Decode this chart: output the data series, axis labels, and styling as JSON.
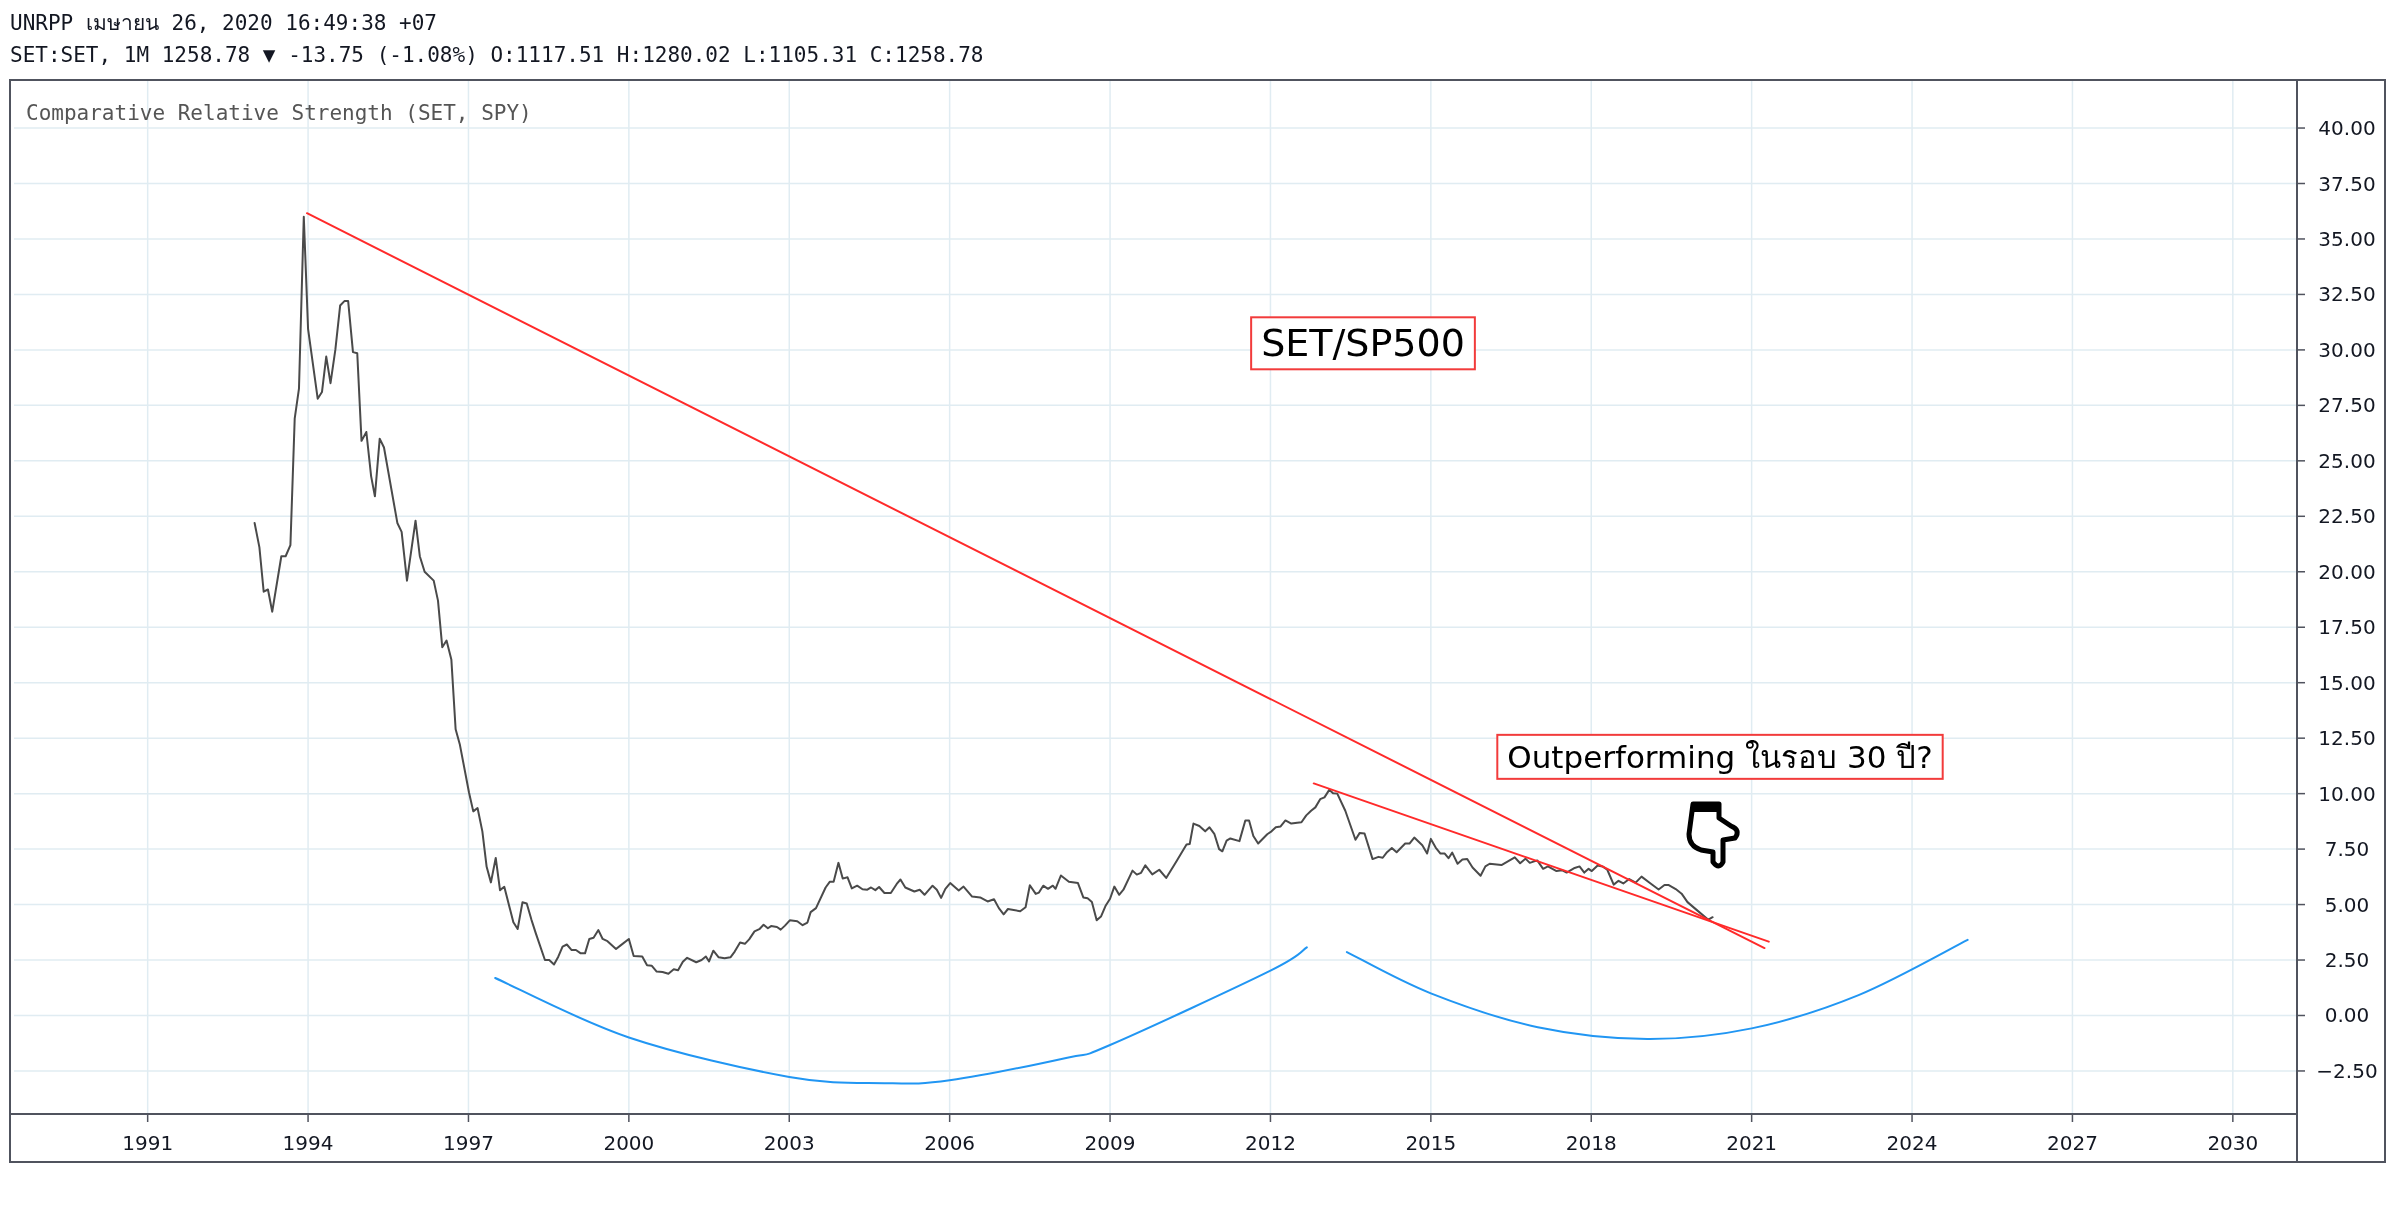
{
  "chart_data": {
    "type": "line",
    "title": "Comparative Relative Strength (SET, SPY)",
    "annotations": [
      "UNRPP เมษายน 26, 2020 16:49:38 +07",
      "SET:SET, 1M 1258.78 ▼ -13.75 (-1.08%) O:1117.51 H:1280.02 L:1105.31 C:1258.78",
      "SET/SP500",
      "Outperforming ในรอบ 30 ปี?"
    ],
    "xlim": [
      1988.5,
      2031.2
    ],
    "xticks": [
      1991,
      1994,
      1997,
      2000,
      2003,
      2006,
      2009,
      2012,
      2015,
      2018,
      2021,
      2024,
      2027,
      2030
    ],
    "ylim": [
      -4.44,
      42.12
    ],
    "yticks": [
      {
        "value": -2.5,
        "label": "−2.50"
      },
      {
        "value": 0,
        "label": "0.00"
      },
      {
        "value": 2.5,
        "label": "2.50"
      },
      {
        "value": 5,
        "label": "5.00"
      },
      {
        "value": 7.5,
        "label": "7.50"
      },
      {
        "value": 10,
        "label": "10.00"
      },
      {
        "value": 12.5,
        "label": "12.50"
      },
      {
        "value": 15,
        "label": "15.00"
      },
      {
        "value": 17.5,
        "label": "17.50"
      },
      {
        "value": 20,
        "label": "20.00"
      },
      {
        "value": 22.5,
        "label": "22.50"
      },
      {
        "value": 25,
        "label": "25.00"
      },
      {
        "value": 27.5,
        "label": "27.50"
      },
      {
        "value": 30,
        "label": "30.00"
      },
      {
        "value": 32.5,
        "label": "32.50"
      },
      {
        "value": 35,
        "label": "35.00"
      },
      {
        "value": 37.5,
        "label": "37.50"
      },
      {
        "value": 40,
        "label": "40.00"
      }
    ],
    "grid": true,
    "series": [
      {
        "color": "#4a4a4a",
        "x": [
          1993.0,
          1993.09,
          1993.17,
          1993.25,
          1993.33,
          1993.5,
          1993.58,
          1993.67,
          1993.75,
          1993.83,
          1993.92,
          1994.0,
          1994.18,
          1994.26,
          1994.34,
          1994.42,
          1994.51,
          1994.6,
          1994.68,
          1994.75,
          1994.84,
          1994.92,
          1995.0,
          1995.09,
          1995.18,
          1995.25,
          1995.34,
          1995.42,
          1995.67,
          1995.75,
          1995.85,
          1996.01,
          1996.09,
          1996.18,
          1996.35,
          1996.43,
          1996.51,
          1996.59,
          1996.68,
          1996.76,
          1996.84,
          1997.01,
          1997.09,
          1997.17,
          1997.26,
          1997.34,
          1997.42,
          1997.51,
          1997.59,
          1997.67,
          1997.84,
          1997.92,
          1998.01,
          1998.09,
          1998.18,
          1998.26,
          1998.43,
          1998.51,
          1998.6,
          1998.68,
          1998.76,
          1998.84,
          1998.93,
          1999.01,
          1999.1,
          1999.18,
          1999.26,
          1999.34,
          1999.43,
          1999.51,
          1999.6,
          1999.76,
          1999.84,
          2000.0,
          2000.09,
          2000.25,
          2000.34,
          2000.43,
          2000.52,
          2000.63,
          2000.74,
          2000.84,
          2000.92,
          2001.01,
          2001.09,
          2001.26,
          2001.36,
          2001.44,
          2001.5,
          2001.58,
          2001.68,
          2001.79,
          2001.9,
          2001.98,
          2002.08,
          2002.17,
          2002.25,
          2002.35,
          2002.44,
          2002.52,
          2002.6,
          2002.66,
          2002.77,
          2002.84,
          2002.92,
          2003.01,
          2003.15,
          2003.25,
          2003.34,
          2003.4,
          2003.5,
          2003.68,
          2003.76,
          2003.83,
          2003.92,
          2004.0,
          2004.09,
          2004.17,
          2004.27,
          2004.37,
          2004.46,
          2004.53,
          2004.61,
          2004.68,
          2004.78,
          2004.9,
          2005.01,
          2005.08,
          2005.17,
          2005.34,
          2005.44,
          2005.53,
          2005.68,
          2005.76,
          2005.84,
          2005.92,
          2006.01,
          2006.17,
          2006.26,
          2006.42,
          2006.57,
          2006.71,
          2006.83,
          2006.92,
          2007.01,
          2007.09,
          2007.32,
          2007.42,
          2007.5,
          2007.61,
          2007.67,
          2007.75,
          2007.84,
          2007.93,
          2007.98,
          2008.08,
          2008.23,
          2008.4,
          2008.5,
          2008.58,
          2008.66,
          2008.75,
          2008.83,
          2008.92,
          2009.0,
          2009.08,
          2009.17,
          2009.25,
          2009.42,
          2009.5,
          2009.58,
          2009.66,
          2009.79,
          2009.92,
          2010.05,
          2010.24,
          2010.43,
          2010.49,
          2010.56,
          2010.67,
          2010.78,
          2010.86,
          2010.95,
          2011.04,
          2011.1,
          2011.18,
          2011.25,
          2011.42,
          2011.53,
          2011.6,
          2011.68,
          2011.77,
          2011.94,
          2012.02,
          2012.1,
          2012.19,
          2012.28,
          2012.39,
          2012.5,
          2012.58,
          2012.67,
          2012.76,
          2012.84,
          2012.93,
          2013.01,
          2013.1,
          2013.17,
          2013.25,
          2013.4,
          2013.59,
          2013.67,
          2013.76,
          2013.91,
          2014.02,
          2014.1,
          2014.18,
          2014.27,
          2014.36,
          2014.52,
          2014.6,
          2014.69,
          2014.84,
          2014.93,
          2015.0,
          2015.09,
          2015.18,
          2015.26,
          2015.33,
          2015.4,
          2015.5,
          2015.59,
          2015.68,
          2015.78,
          2015.93,
          2016.02,
          2016.1,
          2016.32,
          2016.57,
          2016.67,
          2016.77,
          2016.85,
          2016.99,
          2017.1,
          2017.19,
          2017.35,
          2017.45,
          2017.54,
          2017.69,
          2017.78,
          2017.87,
          2017.95,
          2018.01,
          2018.12,
          2018.21,
          2018.3,
          2018.42,
          2018.51,
          2018.6,
          2018.71,
          2018.83,
          2018.94,
          2019.11,
          2019.26,
          2019.37,
          2019.45,
          2019.58,
          2019.69,
          2019.8,
          2019.97,
          2020.19,
          2020.27
        ],
        "values": [
          22.2,
          21.1,
          19.1,
          19.2,
          18.2,
          20.7,
          20.7,
          21.2,
          26.9,
          28.25,
          36.0,
          30.95,
          27.8,
          28.1,
          29.7,
          28.5,
          30.0,
          32.0,
          32.2,
          32.2,
          29.9,
          29.85,
          25.9,
          26.3,
          24.3,
          23.4,
          26.0,
          25.6,
          22.2,
          21.8,
          19.6,
          22.3,
          20.7,
          20.0,
          19.6,
          18.7,
          16.6,
          16.9,
          16.05,
          12.9,
          12.2,
          10.05,
          9.2,
          9.35,
          8.3,
          6.7,
          6.0,
          7.1,
          5.65,
          5.8,
          4.2,
          3.9,
          5.1,
          5.05,
          4.3,
          3.7,
          2.5,
          2.5,
          2.3,
          2.65,
          3.1,
          3.2,
          2.95,
          2.95,
          2.8,
          2.8,
          3.45,
          3.5,
          3.85,
          3.45,
          3.35,
          3.0,
          3.15,
          3.45,
          2.68,
          2.66,
          2.26,
          2.24,
          1.98,
          1.96,
          1.88,
          2.08,
          2.04,
          2.42,
          2.6,
          2.4,
          2.5,
          2.66,
          2.44,
          2.92,
          2.62,
          2.58,
          2.62,
          2.88,
          3.29,
          3.23,
          3.43,
          3.79,
          3.89,
          4.09,
          3.93,
          4.03,
          3.99,
          3.87,
          4.05,
          4.29,
          4.25,
          4.07,
          4.19,
          4.66,
          4.84,
          5.77,
          6.03,
          6.03,
          6.88,
          6.17,
          6.23,
          5.73,
          5.85,
          5.69,
          5.67,
          5.77,
          5.65,
          5.79,
          5.52,
          5.52,
          5.93,
          6.13,
          5.77,
          5.59,
          5.67,
          5.44,
          5.85,
          5.67,
          5.3,
          5.71,
          5.97,
          5.63,
          5.81,
          5.36,
          5.32,
          5.14,
          5.24,
          4.84,
          4.56,
          4.8,
          4.7,
          4.88,
          5.87,
          5.48,
          5.54,
          5.85,
          5.71,
          5.85,
          5.71,
          6.31,
          6.03,
          5.97,
          5.32,
          5.28,
          5.12,
          4.29,
          4.46,
          4.96,
          5.26,
          5.81,
          5.44,
          5.67,
          6.53,
          6.35,
          6.43,
          6.77,
          6.36,
          6.57,
          6.2,
          6.94,
          7.71,
          7.73,
          8.65,
          8.54,
          8.3,
          8.48,
          8.19,
          7.5,
          7.4,
          7.88,
          7.98,
          7.86,
          8.79,
          8.79,
          8.09,
          7.75,
          8.17,
          8.3,
          8.48,
          8.52,
          8.79,
          8.65,
          8.69,
          8.71,
          9.02,
          9.23,
          9.38,
          9.75,
          9.83,
          10.17,
          10.02,
          10.0,
          9.23,
          7.92,
          8.23,
          8.2,
          7.05,
          7.15,
          7.11,
          7.36,
          7.55,
          7.36,
          7.75,
          7.75,
          8.02,
          7.67,
          7.3,
          7.96,
          7.57,
          7.3,
          7.3,
          7.09,
          7.34,
          6.84,
          7.03,
          7.05,
          6.67,
          6.3,
          6.72,
          6.84,
          6.78,
          7.13,
          6.86,
          7.07,
          6.88,
          6.99,
          6.61,
          6.72,
          6.51,
          6.55,
          6.44,
          6.65,
          6.72,
          6.44,
          6.61,
          6.51,
          6.76,
          6.72,
          6.57,
          5.9,
          6.07,
          5.95,
          6.15,
          5.99,
          6.26,
          5.95,
          5.68,
          5.88,
          5.88,
          5.7,
          5.49,
          5.11,
          4.76,
          4.32,
          4.43
        ]
      },
      {
        "color": "#ff2a2a",
        "x": [
          1993.98,
          2021.24
        ],
        "values": [
          36.16,
          3.04
        ]
      },
      {
        "color": "#ff2a2a",
        "x": [
          2012.81,
          2021.32
        ],
        "values": [
          10.46,
          3.33
        ]
      },
      {
        "color": "#2196f3",
        "x": [
          1997.5,
          2000.0,
          2003.0,
          2004.78,
          2006.0,
          2008.2,
          2009.0,
          2012.0,
          2012.68
        ],
        "values": [
          1.69,
          -0.99,
          -2.77,
          -3.05,
          -2.92,
          -1.9,
          -1.33,
          2.02,
          3.07
        ]
      },
      {
        "color": "#2196f3",
        "x": [
          2013.43,
          2015.0,
          2017.0,
          2019.05,
          2021.0,
          2023.0,
          2025.04
        ],
        "values": [
          2.86,
          1.0,
          -0.53,
          -1.06,
          -0.58,
          0.92,
          3.41
        ]
      }
    ]
  }
}
